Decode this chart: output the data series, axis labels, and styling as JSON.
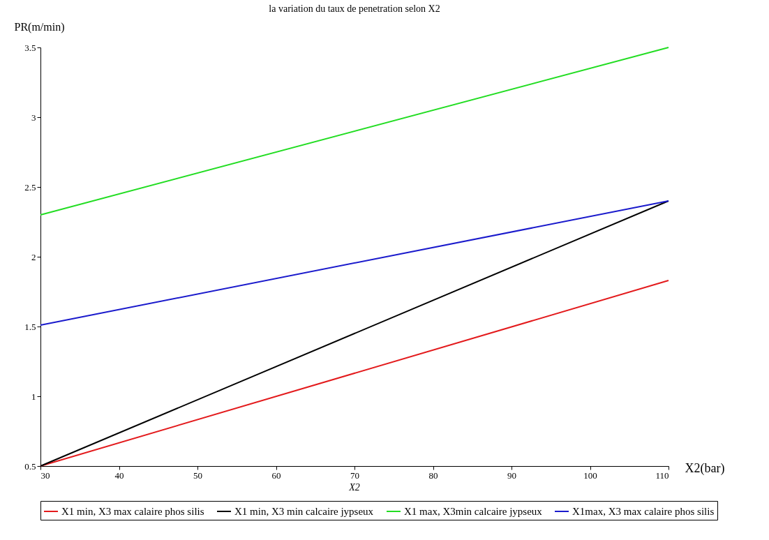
{
  "chart_data": {
    "type": "line",
    "title": "la variation du taux de penetration selon X2",
    "xlabel": "X2(bar)",
    "ylabel": "PR(m/min)",
    "annotations": [
      "X2"
    ],
    "x": [
      30,
      110
    ],
    "series": [
      {
        "name": "X1 min, X3 max calaire phos silis",
        "color": "#e31a1c",
        "values": [
          0.5,
          1.83
        ]
      },
      {
        "name": "X1 min, X3 min calcaire jypseux",
        "color": "#000000",
        "values": [
          0.5,
          2.4
        ]
      },
      {
        "name": "X1 max, X3min calcaire jypseux",
        "color": "#22dd22",
        "values": [
          2.3,
          3.5
        ]
      },
      {
        "name": "X1max, X3 max calaire phos silis",
        "color": "#1a1acc",
        "values": [
          1.51,
          2.4
        ]
      }
    ],
    "xlim": [
      30,
      110
    ],
    "xticks": [
      30,
      40,
      50,
      60,
      70,
      80,
      90,
      100,
      110
    ],
    "ylim": [
      0.5,
      3.5
    ],
    "yticks": [
      0.5,
      1,
      1.5,
      2,
      2.5,
      3,
      3.5
    ],
    "grid": false,
    "legend": "bottom",
    "line_style": "solid"
  }
}
